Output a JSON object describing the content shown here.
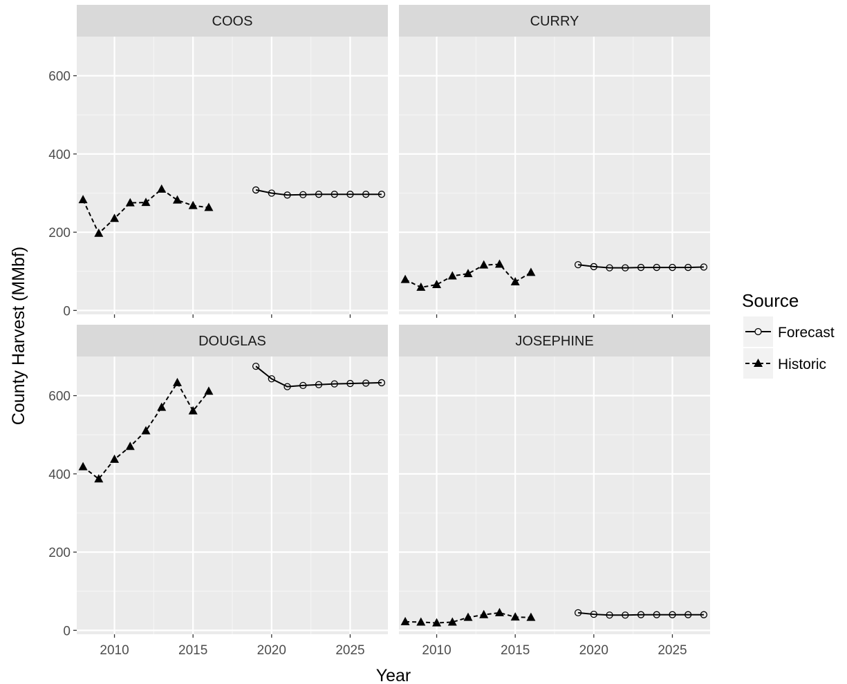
{
  "chart_data": {
    "type": "line",
    "xlabel": "Year",
    "ylabel": "County Harvest (MMbf)",
    "xlim": [
      2007.6,
      2027.4
    ],
    "ylim": [
      -10,
      700
    ],
    "x_ticks": [
      2010,
      2015,
      2020,
      2025
    ],
    "y_ticks": [
      0,
      200,
      400,
      600
    ],
    "grid": true,
    "legend": {
      "title": "Source",
      "position": "right",
      "entries": [
        {
          "name": "Forecast",
          "marker": "open-circle",
          "line": "solid"
        },
        {
          "name": "Historic",
          "marker": "filled-triangle",
          "line": "dashed"
        }
      ]
    },
    "panels": [
      {
        "name": "COOS",
        "series": [
          {
            "name": "Historic",
            "x": [
              2008,
              2009,
              2010,
              2011,
              2012,
              2013,
              2014,
              2015,
              2016
            ],
            "values": [
              283,
              197,
              235,
              275,
              276,
              310,
              282,
              268,
              263
            ]
          },
          {
            "name": "Forecast",
            "x": [
              2019,
              2020,
              2021,
              2022,
              2023,
              2024,
              2025,
              2026,
              2027
            ],
            "values": [
              308,
              300,
              295,
              296,
              297,
              297,
              297,
              297,
              297
            ]
          }
        ]
      },
      {
        "name": "CURRY",
        "series": [
          {
            "name": "Historic",
            "x": [
              2008,
              2009,
              2010,
              2011,
              2012,
              2013,
              2014,
              2015,
              2016
            ],
            "values": [
              79,
              59,
              66,
              88,
              94,
              116,
              118,
              73,
              97
            ]
          },
          {
            "name": "Forecast",
            "x": [
              2019,
              2020,
              2021,
              2022,
              2023,
              2024,
              2025,
              2026,
              2027
            ],
            "values": [
              117,
              112,
              109,
              109,
              110,
              110,
              110,
              110,
              111
            ]
          }
        ]
      },
      {
        "name": "DOUGLAS",
        "series": [
          {
            "name": "Historic",
            "x": [
              2008,
              2009,
              2010,
              2011,
              2012,
              2013,
              2014,
              2015,
              2016
            ],
            "values": [
              418,
              387,
              437,
              470,
              510,
              570,
              633,
              561,
              611
            ]
          },
          {
            "name": "Forecast",
            "x": [
              2019,
              2020,
              2021,
              2022,
              2023,
              2024,
              2025,
              2026,
              2027
            ],
            "values": [
              675,
              643,
              623,
              626,
              628,
              630,
              631,
              632,
              633
            ]
          }
        ]
      },
      {
        "name": "JOSEPHINE",
        "series": [
          {
            "name": "Historic",
            "x": [
              2008,
              2009,
              2010,
              2011,
              2012,
              2013,
              2014,
              2015,
              2016
            ],
            "values": [
              22,
              21,
              19,
              21,
              33,
              40,
              45,
              34,
              33
            ]
          },
          {
            "name": "Forecast",
            "x": [
              2019,
              2020,
              2021,
              2022,
              2023,
              2024,
              2025,
              2026,
              2027
            ],
            "values": [
              45,
              41,
              39,
              39,
              40,
              40,
              40,
              40,
              40
            ]
          }
        ]
      }
    ]
  }
}
